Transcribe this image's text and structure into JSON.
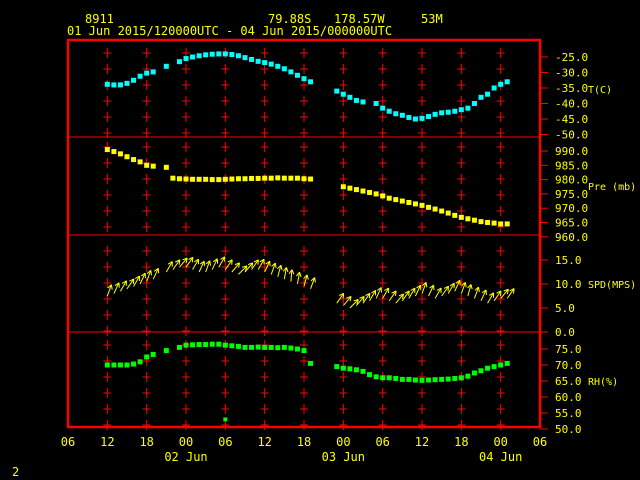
{
  "header": {
    "station_id": "8911",
    "lat": "79.88S",
    "lon": "178.57W",
    "elev": "53M",
    "time_range": "01 Jun 2015/120000UTC - 04 Jun 2015/000000UTC"
  },
  "page_number": "2",
  "colors": {
    "background": "#000000",
    "frame": "#ff0000",
    "text": "#ffff00",
    "temp": "#00ffff",
    "pressure": "#ffff00",
    "wind": "#ffff00",
    "rh": "#00ff00"
  },
  "x_axis": {
    "range_hours": [
      -6,
      66
    ],
    "ticks": [
      {
        "h": -6,
        "label": "06"
      },
      {
        "h": 0,
        "label": "12"
      },
      {
        "h": 6,
        "label": "18"
      },
      {
        "h": 12,
        "label": "00"
      },
      {
        "h": 18,
        "label": "06"
      },
      {
        "h": 24,
        "label": "12"
      },
      {
        "h": 30,
        "label": "18"
      },
      {
        "h": 36,
        "label": "00"
      },
      {
        "h": 42,
        "label": "06"
      },
      {
        "h": 48,
        "label": "12"
      },
      {
        "h": 54,
        "label": "18"
      },
      {
        "h": 60,
        "label": "00"
      },
      {
        "h": 66,
        "label": "06"
      }
    ],
    "date_labels": [
      {
        "h": 12,
        "label": "02 Jun"
      },
      {
        "h": 36,
        "label": "03 Jun"
      },
      {
        "h": 60,
        "label": "04 Jun"
      }
    ]
  },
  "chart_data": [
    {
      "type": "scatter",
      "title": "",
      "ylabel": "T(C)",
      "ylim": [
        -50,
        -25
      ],
      "ticks": [
        "-25.0",
        "-30.0",
        "-35.0",
        "-40.0",
        "-45.0",
        "-50.0"
      ],
      "x_hours": [
        0,
        1,
        2,
        3,
        4,
        5,
        6,
        7,
        9,
        11,
        12,
        13,
        14,
        15,
        16,
        17,
        18,
        19,
        20,
        21,
        22,
        23,
        24,
        25,
        26,
        27,
        28,
        29,
        30,
        31,
        35,
        36,
        37,
        38,
        39,
        41,
        42,
        43,
        44,
        45,
        46,
        47,
        48,
        49,
        50,
        51,
        52,
        53,
        54,
        55,
        56,
        57,
        58,
        59,
        60,
        61
      ],
      "values": [
        -33.8,
        -34.0,
        -34.0,
        -33.5,
        -32.5,
        -31.2,
        -30.2,
        -29.8,
        -28.0,
        -26.5,
        -25.5,
        -25.0,
        -24.6,
        -24.3,
        -24.1,
        -24.0,
        -24.0,
        -24.2,
        -24.6,
        -25.2,
        -25.8,
        -26.4,
        -26.8,
        -27.3,
        -28.0,
        -28.8,
        -29.8,
        -30.9,
        -32.0,
        -33.0,
        -36.0,
        -37.0,
        -38.0,
        -39.0,
        -39.5,
        -40.0,
        -41.5,
        -42.5,
        -43.3,
        -43.8,
        -44.5,
        -45.0,
        -44.8,
        -44.2,
        -43.5,
        -43.0,
        -42.8,
        -42.5,
        -42.0,
        -41.5,
        -40.0,
        -38.0,
        -37.0,
        -35.0,
        -33.8,
        -33.0
      ]
    },
    {
      "type": "scatter",
      "title": "",
      "ylabel": "Pre (mb)",
      "ylim": [
        960,
        995
      ],
      "ticks": [
        "990.0",
        "985.0",
        "980.0",
        "975.0",
        "970.0",
        "965.0",
        "960.0"
      ],
      "x_hours": [
        0,
        1,
        2,
        3,
        4,
        5,
        6,
        7,
        9,
        10,
        11,
        12,
        13,
        14,
        15,
        16,
        17,
        18,
        19,
        20,
        21,
        22,
        23,
        24,
        25,
        26,
        27,
        28,
        29,
        30,
        31,
        36,
        37,
        38,
        39,
        40,
        41,
        42,
        43,
        44,
        45,
        46,
        47,
        48,
        49,
        50,
        51,
        52,
        53,
        54,
        55,
        56,
        57,
        58,
        59,
        60,
        61
      ],
      "values": [
        990.5,
        989.8,
        989.0,
        988.0,
        987.0,
        986.2,
        985.0,
        984.7,
        984.3,
        980.5,
        980.3,
        980.2,
        980.1,
        980.1,
        980.1,
        980.0,
        980.0,
        980.1,
        980.2,
        980.3,
        980.3,
        980.4,
        980.4,
        980.5,
        980.5,
        980.6,
        980.5,
        980.5,
        980.5,
        980.3,
        980.2,
        977.5,
        977.0,
        976.5,
        976.0,
        975.5,
        975.0,
        974.3,
        973.5,
        973.0,
        972.5,
        972.0,
        971.5,
        971.0,
        970.3,
        969.7,
        969.0,
        968.3,
        967.5,
        966.8,
        966.3,
        965.8,
        965.3,
        965.0,
        964.8,
        964.5,
        964.5
      ]
    },
    {
      "type": "scatter",
      "title": "",
      "ylabel": "SPD(MPS)",
      "ylim": [
        0,
        17
      ],
      "ticks": [
        "15.0",
        "10.0",
        "5.0",
        "0.0"
      ],
      "x_hours": [
        0,
        1,
        2,
        3,
        4,
        5,
        6,
        7,
        9,
        10,
        11,
        12,
        13,
        14,
        15,
        16,
        17,
        18,
        19,
        20,
        21,
        22,
        23,
        24,
        25,
        26,
        27,
        28,
        29,
        30,
        31,
        35,
        36,
        37,
        38,
        39,
        40,
        41,
        42,
        43,
        44,
        45,
        46,
        47,
        48,
        49,
        50,
        51,
        52,
        53,
        54,
        55,
        56,
        57,
        58,
        59,
        60,
        61
      ],
      "values": [
        7.5,
        8.0,
        8.5,
        9.0,
        9.5,
        10.0,
        10.5,
        11.0,
        12.5,
        13.0,
        13.5,
        13.5,
        13.0,
        12.5,
        12.5,
        13.0,
        13.5,
        13.0,
        12.5,
        12.0,
        12.5,
        13.0,
        13.0,
        12.5,
        12.0,
        11.5,
        11.0,
        10.5,
        10.0,
        9.5,
        9.0,
        6.0,
        5.5,
        5.0,
        5.5,
        6.0,
        6.5,
        7.0,
        7.0,
        6.5,
        6.0,
        6.5,
        7.0,
        7.5,
        8.0,
        7.5,
        7.0,
        7.5,
        8.0,
        8.5,
        8.0,
        7.5,
        7.0,
        6.5,
        6.0,
        6.5,
        7.0,
        7.0
      ],
      "direction_deg": [
        200,
        205,
        210,
        215,
        210,
        205,
        200,
        205,
        210,
        215,
        220,
        215,
        210,
        205,
        200,
        205,
        210,
        215,
        220,
        225,
        220,
        215,
        210,
        205,
        200,
        195,
        190,
        185,
        190,
        195,
        200,
        215,
        220,
        225,
        220,
        215,
        210,
        205,
        210,
        215,
        220,
        215,
        210,
        205,
        200,
        205,
        210,
        215,
        210,
        205,
        200,
        195,
        200,
        205,
        210,
        215,
        220,
        215
      ]
    },
    {
      "type": "scatter",
      "title": "",
      "ylabel": "RH(%)",
      "ylim": [
        50,
        80
      ],
      "ticks": [
        "75.0",
        "70.0",
        "65.0",
        "60.0",
        "55.0",
        "50.0"
      ],
      "x_hours": [
        0,
        1,
        2,
        3,
        4,
        5,
        6,
        7,
        9,
        11,
        12,
        13,
        14,
        15,
        16,
        17,
        18,
        19,
        20,
        21,
        22,
        23,
        24,
        25,
        26,
        27,
        28,
        29,
        30,
        31,
        35,
        36,
        37,
        38,
        39,
        40,
        41,
        42,
        43,
        44,
        45,
        46,
        47,
        48,
        49,
        50,
        51,
        52,
        53,
        54,
        55,
        56,
        57,
        58,
        59,
        60,
        61
      ],
      "values": [
        70.0,
        70.0,
        70.0,
        70.0,
        70.3,
        71.0,
        72.5,
        73.3,
        74.5,
        75.5,
        76.2,
        76.3,
        76.4,
        76.4,
        76.5,
        76.5,
        76.2,
        76.0,
        75.8,
        75.5,
        75.5,
        75.6,
        75.5,
        75.5,
        75.4,
        75.5,
        75.3,
        75.0,
        74.5,
        70.5,
        69.5,
        69.0,
        68.8,
        68.5,
        68.0,
        67.0,
        66.3,
        66.0,
        66.0,
        65.8,
        65.5,
        65.5,
        65.3,
        65.2,
        65.3,
        65.4,
        65.5,
        65.6,
        65.8,
        66.0,
        66.5,
        67.5,
        68.2,
        69.0,
        69.5,
        70.0,
        70.5
      ]
    }
  ],
  "rh_outlier": {
    "x_hour": 18,
    "value": 53.0
  }
}
